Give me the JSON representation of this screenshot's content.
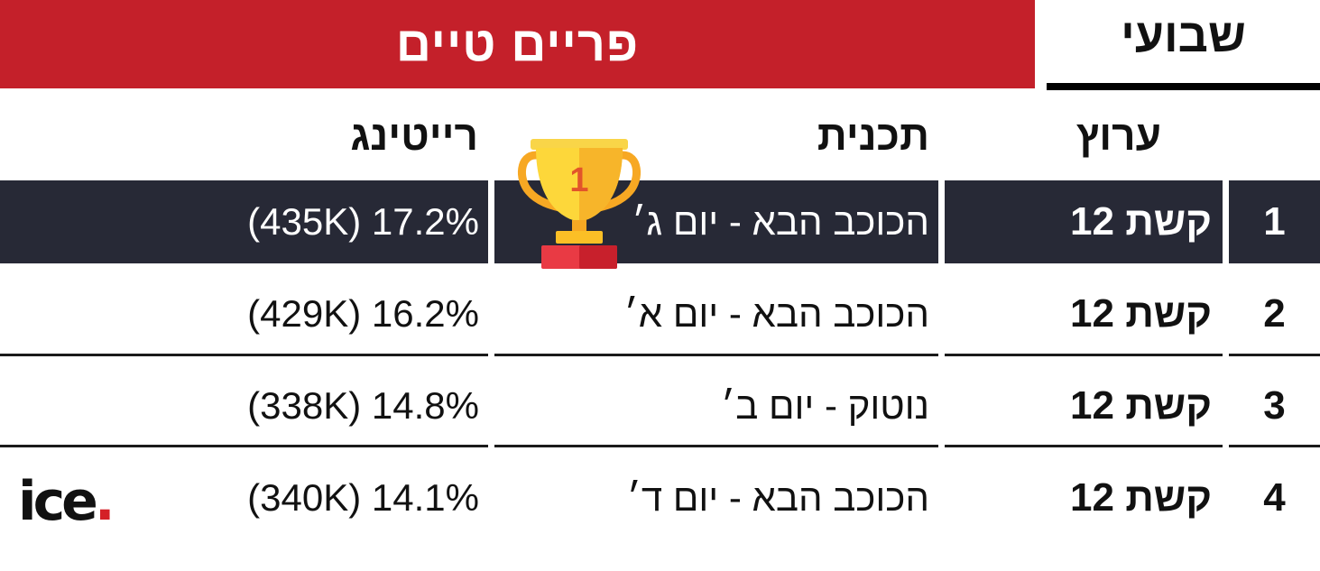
{
  "header": {
    "title": "פריים טיים",
    "period": "שבועי"
  },
  "columns": {
    "channel": "ערוץ",
    "program": "תכנית",
    "rating": "רייטינג"
  },
  "rows": [
    {
      "rank": "1",
      "channel": "קשת 12",
      "program": "הכוכב הבא - יום ג׳",
      "rating": "(435K) 17.2%"
    },
    {
      "rank": "2",
      "channel": "קשת 12",
      "program": "הכוכב הבא - יום א׳",
      "rating": "(429K) 16.2%"
    },
    {
      "rank": "3",
      "channel": "קשת 12",
      "program": "נוטוק - יום ב׳",
      "rating": "(338K) 14.8%"
    },
    {
      "rank": "4",
      "channel": "קשת 12",
      "program": "הכוכב הבא - יום ד׳",
      "rating": "(340K) 14.1%"
    }
  ],
  "trophy": {
    "icon": "trophy-icon",
    "label": "1"
  },
  "logo": {
    "text": "ice",
    "dot": "."
  },
  "colors": {
    "banner": "#c4202a",
    "highlight_row": "#272936",
    "logo_dot": "#d42027"
  }
}
